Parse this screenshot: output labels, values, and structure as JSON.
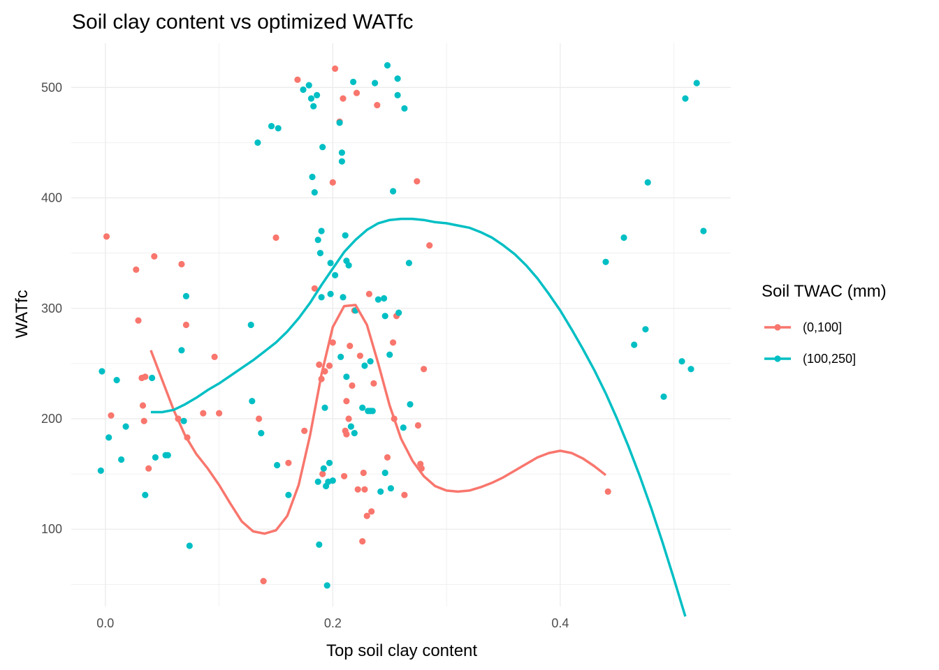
{
  "chart_data": {
    "type": "scatter",
    "title": "Soil clay content vs optimized WATfc",
    "xlabel": "Top soil clay content",
    "ylabel": "WATfc",
    "xlim": [
      -0.03,
      0.55
    ],
    "ylim": [
      30,
      540
    ],
    "x_ticks": [
      0.0,
      0.2,
      0.4
    ],
    "x_tick_labels": [
      "0.0",
      "0.2",
      "0.4"
    ],
    "y_ticks": [
      100,
      200,
      300,
      400,
      500
    ],
    "y_tick_labels": [
      "100",
      "200",
      "300",
      "400",
      "500"
    ],
    "grid": true,
    "legend": {
      "title": "Soil TWAC (mm)",
      "position": "right"
    },
    "series": [
      {
        "name": "(0,100]",
        "color": "#F8766D",
        "points": [
          [
            0.001,
            365
          ],
          [
            0.005,
            203
          ],
          [
            0.027,
            335
          ],
          [
            0.029,
            289
          ],
          [
            0.032,
            237
          ],
          [
            0.033,
            212
          ],
          [
            0.034,
            198
          ],
          [
            0.035,
            238
          ],
          [
            0.038,
            155
          ],
          [
            0.043,
            347
          ],
          [
            0.064,
            200
          ],
          [
            0.067,
            340
          ],
          [
            0.071,
            285
          ],
          [
            0.072,
            183
          ],
          [
            0.086,
            205
          ],
          [
            0.096,
            256
          ],
          [
            0.1,
            205
          ],
          [
            0.135,
            200
          ],
          [
            0.139,
            53
          ],
          [
            0.15,
            364
          ],
          [
            0.161,
            160
          ],
          [
            0.169,
            507
          ],
          [
            0.175,
            189
          ],
          [
            0.184,
            318
          ],
          [
            0.188,
            249
          ],
          [
            0.19,
            236
          ],
          [
            0.191,
            150
          ],
          [
            0.193,
            243
          ],
          [
            0.197,
            248
          ],
          [
            0.2,
            414
          ],
          [
            0.2,
            269
          ],
          [
            0.202,
            517
          ],
          [
            0.206,
            469
          ],
          [
            0.209,
            490
          ],
          [
            0.21,
            148
          ],
          [
            0.211,
            189
          ],
          [
            0.212,
            186
          ],
          [
            0.212,
            216
          ],
          [
            0.214,
            200
          ],
          [
            0.215,
            266
          ],
          [
            0.217,
            230
          ],
          [
            0.219,
            298
          ],
          [
            0.221,
            495
          ],
          [
            0.222,
            136
          ],
          [
            0.224,
            257
          ],
          [
            0.226,
            89
          ],
          [
            0.227,
            151
          ],
          [
            0.228,
            136
          ],
          [
            0.23,
            112
          ],
          [
            0.232,
            313
          ],
          [
            0.234,
            116
          ],
          [
            0.236,
            232
          ],
          [
            0.239,
            484
          ],
          [
            0.248,
            165
          ],
          [
            0.253,
            269
          ],
          [
            0.254,
            200
          ],
          [
            0.256,
            293
          ],
          [
            0.263,
            131
          ],
          [
            0.274,
            415
          ],
          [
            0.275,
            194
          ],
          [
            0.277,
            159
          ],
          [
            0.278,
            155
          ],
          [
            0.28,
            245
          ],
          [
            0.285,
            357
          ],
          [
            0.442,
            134
          ]
        ],
        "smooth": [
          [
            0.04,
            262
          ],
          [
            0.05,
            235
          ],
          [
            0.06,
            208
          ],
          [
            0.07,
            185
          ],
          [
            0.08,
            168
          ],
          [
            0.09,
            155
          ],
          [
            0.1,
            140
          ],
          [
            0.11,
            123
          ],
          [
            0.12,
            107
          ],
          [
            0.13,
            98
          ],
          [
            0.14,
            96
          ],
          [
            0.15,
            99
          ],
          [
            0.16,
            112
          ],
          [
            0.17,
            140
          ],
          [
            0.18,
            185
          ],
          [
            0.19,
            240
          ],
          [
            0.2,
            283
          ],
          [
            0.21,
            302
          ],
          [
            0.22,
            303
          ],
          [
            0.23,
            285
          ],
          [
            0.24,
            250
          ],
          [
            0.25,
            212
          ],
          [
            0.26,
            182
          ],
          [
            0.27,
            162
          ],
          [
            0.28,
            148
          ],
          [
            0.29,
            139
          ],
          [
            0.3,
            135
          ],
          [
            0.31,
            134
          ],
          [
            0.32,
            135
          ],
          [
            0.33,
            138
          ],
          [
            0.34,
            142
          ],
          [
            0.35,
            147
          ],
          [
            0.36,
            153
          ],
          [
            0.37,
            159
          ],
          [
            0.38,
            165
          ],
          [
            0.39,
            169
          ],
          [
            0.4,
            171
          ],
          [
            0.41,
            169
          ],
          [
            0.42,
            164
          ],
          [
            0.43,
            157
          ],
          [
            0.44,
            149
          ]
        ]
      },
      {
        "name": "(100,250]",
        "color": "#00BFC4",
        "points": [
          [
            -0.004,
            153
          ],
          [
            -0.003,
            243
          ],
          [
            0.003,
            183
          ],
          [
            0.01,
            235
          ],
          [
            0.014,
            163
          ],
          [
            0.018,
            193
          ],
          [
            0.035,
            131
          ],
          [
            0.041,
            237
          ],
          [
            0.044,
            165
          ],
          [
            0.053,
            167
          ],
          [
            0.055,
            167
          ],
          [
            0.067,
            262
          ],
          [
            0.069,
            198
          ],
          [
            0.071,
            311
          ],
          [
            0.074,
            85
          ],
          [
            0.128,
            285
          ],
          [
            0.129,
            216
          ],
          [
            0.134,
            450
          ],
          [
            0.137,
            187
          ],
          [
            0.146,
            465
          ],
          [
            0.151,
            158
          ],
          [
            0.152,
            463
          ],
          [
            0.161,
            131
          ],
          [
            0.174,
            498
          ],
          [
            0.179,
            502
          ],
          [
            0.181,
            490
          ],
          [
            0.182,
            419
          ],
          [
            0.183,
            483
          ],
          [
            0.184,
            405
          ],
          [
            0.186,
            493
          ],
          [
            0.187,
            362
          ],
          [
            0.187,
            143
          ],
          [
            0.188,
            86
          ],
          [
            0.189,
            350
          ],
          [
            0.19,
            310
          ],
          [
            0.19,
            370
          ],
          [
            0.191,
            446
          ],
          [
            0.192,
            155
          ],
          [
            0.193,
            210
          ],
          [
            0.194,
            139
          ],
          [
            0.195,
            49
          ],
          [
            0.196,
            143
          ],
          [
            0.197,
            160
          ],
          [
            0.198,
            341
          ],
          [
            0.198,
            313
          ],
          [
            0.2,
            144
          ],
          [
            0.202,
            330
          ],
          [
            0.206,
            468
          ],
          [
            0.207,
            256
          ],
          [
            0.208,
            441
          ],
          [
            0.208,
            433
          ],
          [
            0.209,
            310
          ],
          [
            0.211,
            366
          ],
          [
            0.212,
            238
          ],
          [
            0.212,
            343
          ],
          [
            0.214,
            339
          ],
          [
            0.216,
            193
          ],
          [
            0.218,
            505
          ],
          [
            0.219,
            187
          ],
          [
            0.22,
            298
          ],
          [
            0.226,
            210
          ],
          [
            0.228,
            248
          ],
          [
            0.231,
            207
          ],
          [
            0.233,
            252
          ],
          [
            0.233,
            207
          ],
          [
            0.235,
            207
          ],
          [
            0.237,
            504
          ],
          [
            0.24,
            308
          ],
          [
            0.242,
            134
          ],
          [
            0.245,
            309
          ],
          [
            0.246,
            293
          ],
          [
            0.246,
            151
          ],
          [
            0.248,
            520
          ],
          [
            0.25,
            258
          ],
          [
            0.251,
            137
          ],
          [
            0.253,
            406
          ],
          [
            0.257,
            493
          ],
          [
            0.257,
            508
          ],
          [
            0.258,
            296
          ],
          [
            0.262,
            192
          ],
          [
            0.263,
            481
          ],
          [
            0.267,
            341
          ],
          [
            0.268,
            213
          ],
          [
            0.44,
            342
          ],
          [
            0.456,
            364
          ],
          [
            0.465,
            267
          ],
          [
            0.475,
            281
          ],
          [
            0.477,
            414
          ],
          [
            0.491,
            220
          ],
          [
            0.507,
            252
          ],
          [
            0.51,
            490
          ],
          [
            0.515,
            245
          ],
          [
            0.52,
            504
          ],
          [
            0.526,
            370
          ]
        ],
        "smooth": [
          [
            0.04,
            206
          ],
          [
            0.05,
            206
          ],
          [
            0.06,
            208
          ],
          [
            0.07,
            213
          ],
          [
            0.08,
            219
          ],
          [
            0.09,
            226
          ],
          [
            0.1,
            232
          ],
          [
            0.11,
            239
          ],
          [
            0.12,
            246
          ],
          [
            0.13,
            253
          ],
          [
            0.14,
            261
          ],
          [
            0.15,
            269
          ],
          [
            0.16,
            279
          ],
          [
            0.17,
            291
          ],
          [
            0.18,
            305
          ],
          [
            0.19,
            321
          ],
          [
            0.2,
            336
          ],
          [
            0.21,
            351
          ],
          [
            0.22,
            362
          ],
          [
            0.23,
            371
          ],
          [
            0.24,
            377
          ],
          [
            0.25,
            380
          ],
          [
            0.26,
            381
          ],
          [
            0.27,
            381
          ],
          [
            0.28,
            380
          ],
          [
            0.29,
            378
          ],
          [
            0.3,
            377
          ],
          [
            0.31,
            375
          ],
          [
            0.32,
            373
          ],
          [
            0.33,
            369
          ],
          [
            0.34,
            364
          ],
          [
            0.35,
            357
          ],
          [
            0.36,
            349
          ],
          [
            0.37,
            339
          ],
          [
            0.38,
            327
          ],
          [
            0.39,
            313
          ],
          [
            0.4,
            298
          ],
          [
            0.41,
            281
          ],
          [
            0.42,
            263
          ],
          [
            0.43,
            244
          ],
          [
            0.44,
            223
          ],
          [
            0.45,
            200
          ],
          [
            0.46,
            175
          ],
          [
            0.47,
            148
          ],
          [
            0.48,
            119
          ],
          [
            0.49,
            88
          ],
          [
            0.5,
            55
          ],
          [
            0.51,
            21
          ]
        ]
      }
    ]
  }
}
